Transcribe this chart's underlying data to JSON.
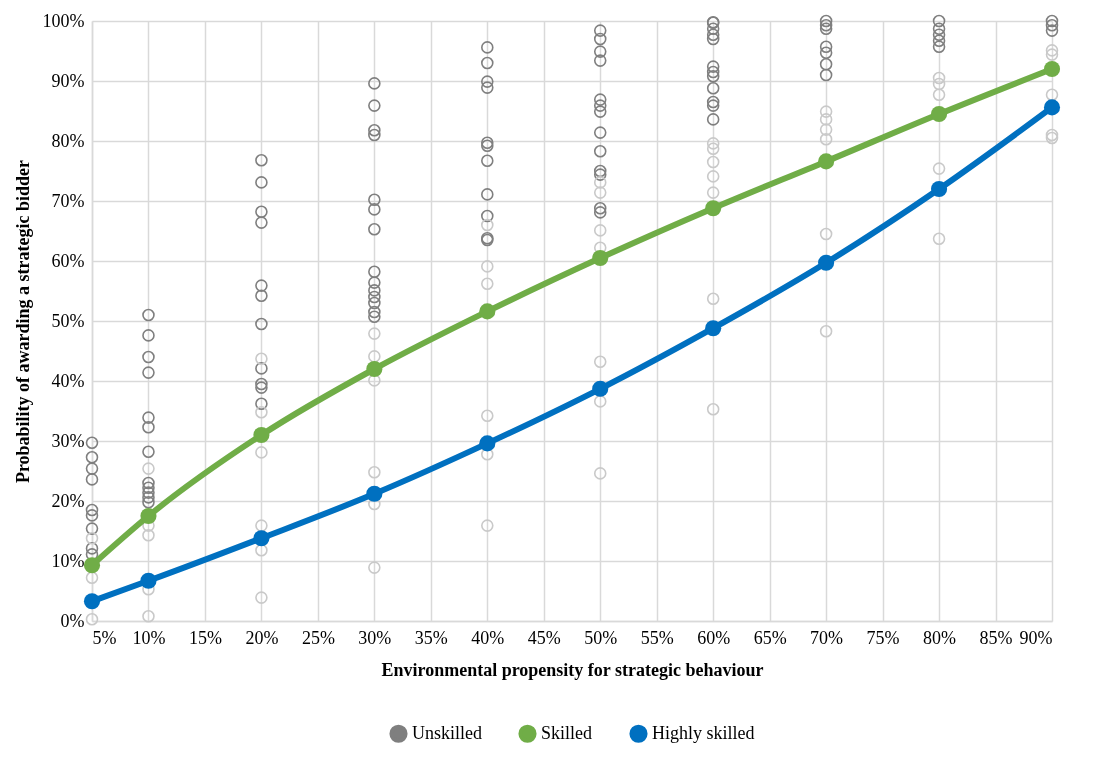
{
  "chart_data": {
    "type": "line",
    "xlabel": "Environmental propensity for strategic behaviour",
    "ylabel": "Probability of awarding a strategic bidder",
    "x": [
      5,
      10,
      20,
      30,
      40,
      50,
      60,
      70,
      80,
      90
    ],
    "xlim": [
      5,
      90
    ],
    "xticks": [
      {
        "value": 5,
        "label": "5%"
      },
      {
        "value": 10,
        "label": "10%"
      },
      {
        "value": 15,
        "label": "15%"
      },
      {
        "value": 20,
        "label": "20%"
      },
      {
        "value": 25,
        "label": "25%"
      },
      {
        "value": 30,
        "label": "30%"
      },
      {
        "value": 35,
        "label": "35%"
      },
      {
        "value": 40,
        "label": "40%"
      },
      {
        "value": 45,
        "label": "45%"
      },
      {
        "value": 50,
        "label": "50%"
      },
      {
        "value": 55,
        "label": "55%"
      },
      {
        "value": 60,
        "label": "60%"
      },
      {
        "value": 65,
        "label": "65%"
      },
      {
        "value": 70,
        "label": "70%"
      },
      {
        "value": 75,
        "label": "75%"
      },
      {
        "value": 80,
        "label": "80%"
      },
      {
        "value": 85,
        "label": "85%"
      },
      {
        "value": 90,
        "label": "90%"
      }
    ],
    "ylim": [
      0,
      100
    ],
    "yticks": [
      {
        "value": 0,
        "label": "0%"
      },
      {
        "value": 10,
        "label": "10%"
      },
      {
        "value": 20,
        "label": "20%"
      },
      {
        "value": 30,
        "label": "30%"
      },
      {
        "value": 40,
        "label": "40%"
      },
      {
        "value": 50,
        "label": "50%"
      },
      {
        "value": 60,
        "label": "60%"
      },
      {
        "value": 70,
        "label": "70%"
      },
      {
        "value": 80,
        "label": "80%"
      },
      {
        "value": 90,
        "label": "90%"
      },
      {
        "value": 100,
        "label": "100%"
      }
    ],
    "grid": true,
    "legend": "bottom",
    "marker": "circle",
    "series": [
      {
        "name": "Unskilled",
        "type": "scatter",
        "color": "#7f7f7f",
        "x": [
          5,
          5,
          5,
          5,
          5,
          5,
          5,
          5,
          5,
          10,
          10,
          10,
          10,
          10,
          10,
          10,
          10,
          10,
          10,
          10,
          10,
          20,
          20,
          20,
          20,
          20,
          20,
          20,
          20,
          20,
          20,
          20,
          30,
          30,
          30,
          30,
          30,
          30,
          30,
          30,
          30,
          30,
          30,
          30,
          30,
          30,
          40,
          40,
          40,
          40,
          40,
          40,
          40,
          40,
          40,
          40,
          40,
          50,
          50,
          50,
          50,
          50,
          50,
          50,
          50,
          50,
          50,
          50,
          50,
          50,
          60,
          60,
          60,
          60,
          60,
          60,
          60,
          60,
          60,
          60,
          60,
          60,
          70,
          70,
          70,
          70,
          70,
          70,
          70,
          80,
          80,
          80,
          80,
          80,
          90,
          90,
          90
        ],
        "values": [
          29.7,
          27.3,
          25.4,
          23.6,
          18.5,
          17.6,
          15.4,
          12.1,
          11.1,
          51.0,
          47.6,
          44.0,
          41.4,
          33.9,
          32.3,
          28.2,
          23.0,
          22.2,
          21.4,
          20.6,
          19.8,
          76.8,
          73.1,
          68.2,
          66.4,
          55.9,
          54.2,
          49.5,
          42.1,
          39.5,
          38.9,
          36.2,
          89.6,
          85.9,
          81.8,
          81.0,
          70.2,
          68.6,
          65.3,
          58.2,
          56.4,
          55.1,
          54.0,
          53.0,
          51.5,
          50.7,
          95.6,
          93.0,
          89.9,
          88.9,
          79.7,
          79.2,
          76.7,
          71.1,
          67.5,
          63.8,
          63.5,
          98.4,
          97.0,
          94.9,
          93.4,
          86.9,
          85.9,
          84.9,
          81.4,
          78.3,
          75.0,
          74.4,
          68.8,
          68.1,
          99.8,
          99.7,
          98.7,
          97.7,
          97.0,
          92.4,
          91.5,
          90.8,
          88.8,
          86.5,
          85.9,
          83.6,
          100,
          99.3,
          98.7,
          95.7,
          94.7,
          92.8,
          91.0,
          100,
          98.7,
          97.7,
          96.7,
          95.7,
          100,
          99.3,
          98.4
        ]
      },
      {
        "type": "scatter",
        "color": "#c9c9c9",
        "x": [
          5,
          5,
          5,
          10,
          10,
          10,
          10,
          10,
          20,
          20,
          20,
          20,
          20,
          20,
          30,
          30,
          30,
          30,
          30,
          30,
          40,
          40,
          40,
          40,
          40,
          40,
          50,
          50,
          50,
          50,
          50,
          50,
          50,
          60,
          60,
          60,
          60,
          60,
          60,
          60,
          70,
          70,
          70,
          70,
          70,
          70,
          80,
          80,
          80,
          80,
          80,
          90,
          90,
          90,
          90,
          90
        ],
        "values": [
          13.8,
          7.2,
          0.3,
          25.4,
          15.9,
          14.3,
          5.3,
          0.8,
          43.7,
          34.8,
          28.1,
          15.9,
          11.8,
          3.9,
          47.9,
          44.1,
          40.1,
          24.8,
          19.5,
          8.9,
          66.0,
          59.1,
          56.2,
          34.2,
          27.8,
          15.9,
          73.1,
          71.4,
          65.1,
          62.2,
          43.2,
          36.6,
          24.6,
          79.6,
          78.7,
          76.5,
          74.1,
          71.4,
          53.7,
          35.3,
          84.9,
          83.6,
          81.9,
          80.3,
          64.5,
          48.3,
          90.5,
          89.5,
          87.7,
          75.4,
          63.7,
          95.1,
          94.4,
          87.7,
          81.0,
          80.5
        ]
      },
      {
        "name": "Skilled",
        "color": "#70ad47",
        "values": [
          9.3,
          17.5,
          31.0,
          42.0,
          51.6,
          60.5,
          68.8,
          76.6,
          84.5,
          92.0
        ]
      },
      {
        "name": "Highly skilled",
        "color": "#0070c0",
        "values": [
          3.3,
          6.7,
          13.8,
          21.2,
          29.6,
          38.7,
          48.8,
          59.7,
          72.0,
          85.6
        ]
      }
    ]
  }
}
